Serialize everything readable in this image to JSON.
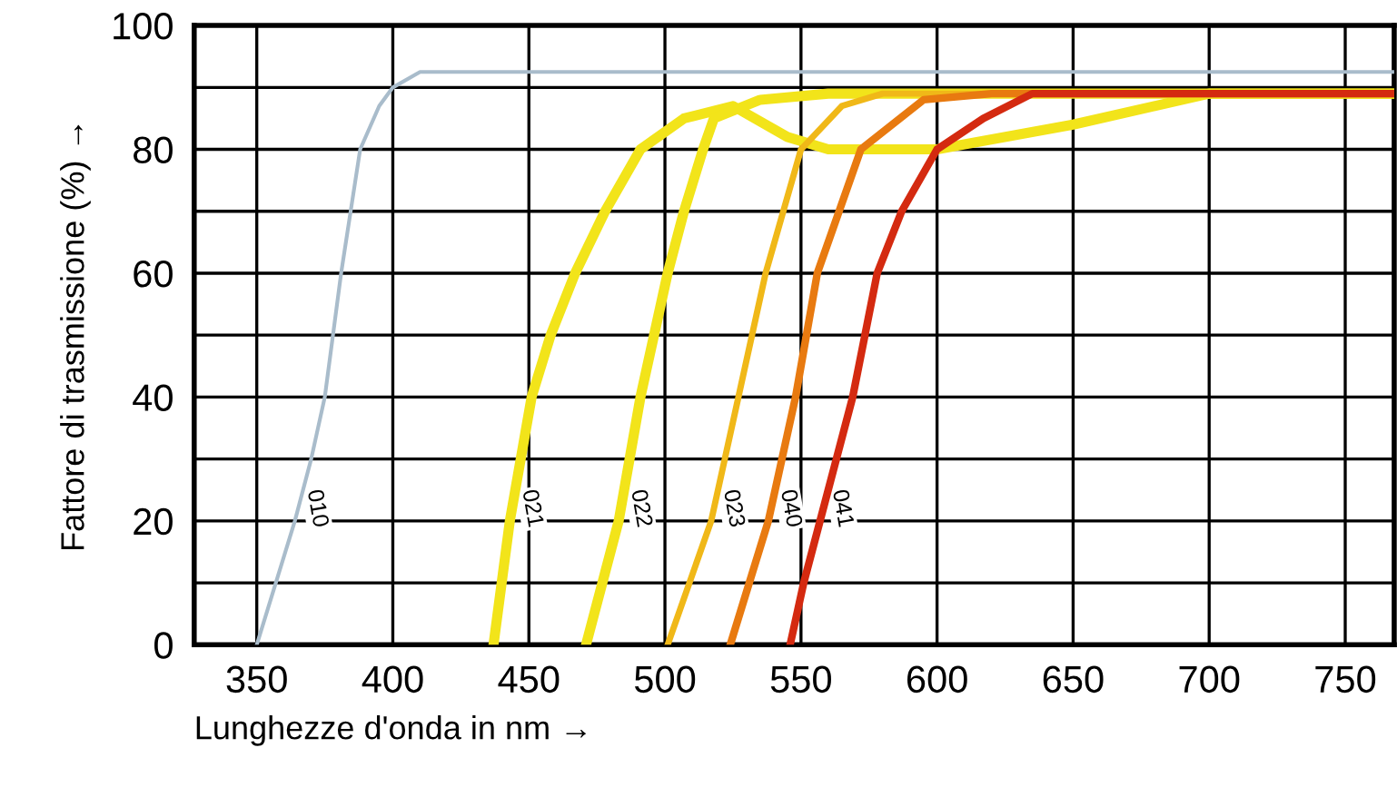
{
  "chart_data": {
    "type": "line",
    "xlabel": "Lunghezze d'onda in nm →",
    "ylabel": "Fattore di trasmissione (%) →",
    "xlim": [
      327,
      768
    ],
    "xticks": [
      350,
      400,
      450,
      500,
      550,
      600,
      650,
      700,
      750
    ],
    "ylim": [
      0,
      100
    ],
    "yticks": [
      0,
      {
        "value": 10,
        "label": null
      },
      20,
      {
        "value": 30,
        "label": null
      },
      40,
      {
        "value": 50,
        "label": null
      },
      60,
      {
        "value": 70,
        "label": null
      },
      80,
      {
        "value": 90,
        "label": null
      },
      100
    ],
    "grid": true,
    "legend": false,
    "marker": "none",
    "line_style": "solid",
    "series": [
      {
        "name": "010",
        "color": "#a9bccb",
        "x": [
          350,
          357,
          364,
          370,
          375,
          381,
          388,
          395,
          400,
          410,
          450,
          768
        ],
        "values": [
          0,
          10,
          20,
          30,
          40,
          60,
          80,
          87,
          90,
          92.5,
          92.5,
          92.5
        ]
      },
      {
        "name": "021",
        "color": "#f2e41a",
        "x": [
          437,
          440,
          443,
          451,
          458,
          467,
          478,
          491,
          507,
          525,
          545,
          560,
          600,
          650,
          700,
          768
        ],
        "values": [
          0,
          10,
          20,
          40,
          50,
          60,
          70,
          80,
          85,
          87,
          82,
          80,
          80,
          84,
          89,
          89
        ]
      },
      {
        "name": "022",
        "color": "#f2e41a",
        "x": [
          471,
          477,
          483,
          491,
          501,
          507,
          514,
          518,
          535,
          560,
          768
        ],
        "values": [
          0,
          10,
          20,
          40,
          60,
          70,
          80,
          85,
          88,
          89,
          89
        ]
      },
      {
        "name": "023",
        "color": "#f0b818",
        "x": [
          501,
          509,
          517,
          527,
          537,
          550,
          565,
          580,
          768
        ],
        "values": [
          0,
          10,
          20,
          40,
          60,
          80,
          87,
          89,
          89
        ]
      },
      {
        "name": "040",
        "color": "#e87a10",
        "x": [
          524,
          531,
          538,
          548,
          556,
          572,
          595,
          620,
          768
        ],
        "values": [
          0,
          10,
          20,
          40,
          60,
          80,
          88,
          89,
          89
        ]
      },
      {
        "name": "041",
        "color": "#d42a10",
        "x": [
          546,
          551,
          557,
          569,
          578,
          587,
          600,
          617,
          635,
          768
        ],
        "values": [
          0,
          10,
          20,
          40,
          60,
          70,
          80,
          85,
          89,
          89
        ]
      }
    ]
  }
}
